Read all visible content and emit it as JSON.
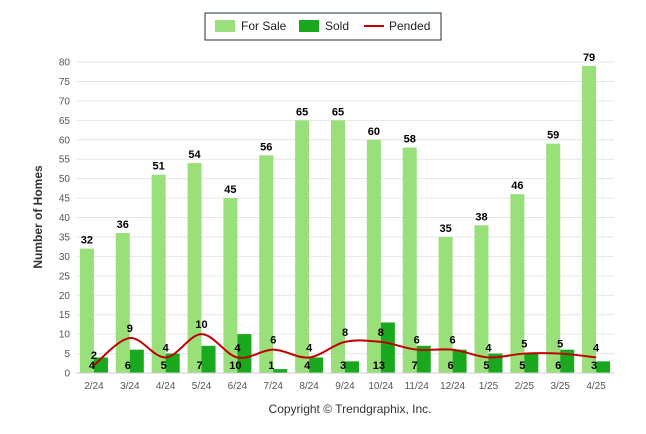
{
  "chart_data": {
    "type": "bar",
    "categories": [
      "2/24",
      "3/24",
      "4/24",
      "5/24",
      "6/24",
      "7/24",
      "8/24",
      "9/24",
      "10/24",
      "11/24",
      "12/24",
      "1/25",
      "2/25",
      "3/25",
      "4/25"
    ],
    "series": [
      {
        "name": "For Sale",
        "type": "bar",
        "color": "#99e07a",
        "values": [
          32,
          36,
          51,
          54,
          45,
          56,
          65,
          65,
          60,
          58,
          35,
          38,
          46,
          59,
          79
        ]
      },
      {
        "name": "Sold",
        "type": "bar",
        "color": "#19a81e",
        "values": [
          4,
          6,
          5,
          7,
          10,
          1,
          4,
          3,
          13,
          7,
          6,
          5,
          5,
          6,
          3
        ]
      },
      {
        "name": "Pended",
        "type": "line",
        "color": "#c00000",
        "values": [
          2,
          9,
          4,
          10,
          4,
          6,
          4,
          8,
          8,
          6,
          6,
          4,
          5,
          5,
          4
        ]
      }
    ],
    "ylabel": "Number of Homes",
    "xlabel": "",
    "ylim": [
      0,
      80
    ],
    "yticks": [
      0,
      5,
      10,
      15,
      20,
      25,
      30,
      35,
      40,
      45,
      50,
      55,
      60,
      65,
      70,
      75,
      80
    ],
    "grid": true,
    "legend": "top-center"
  },
  "footer": {
    "copyright": "Copyright © Trendgraphix, Inc."
  }
}
